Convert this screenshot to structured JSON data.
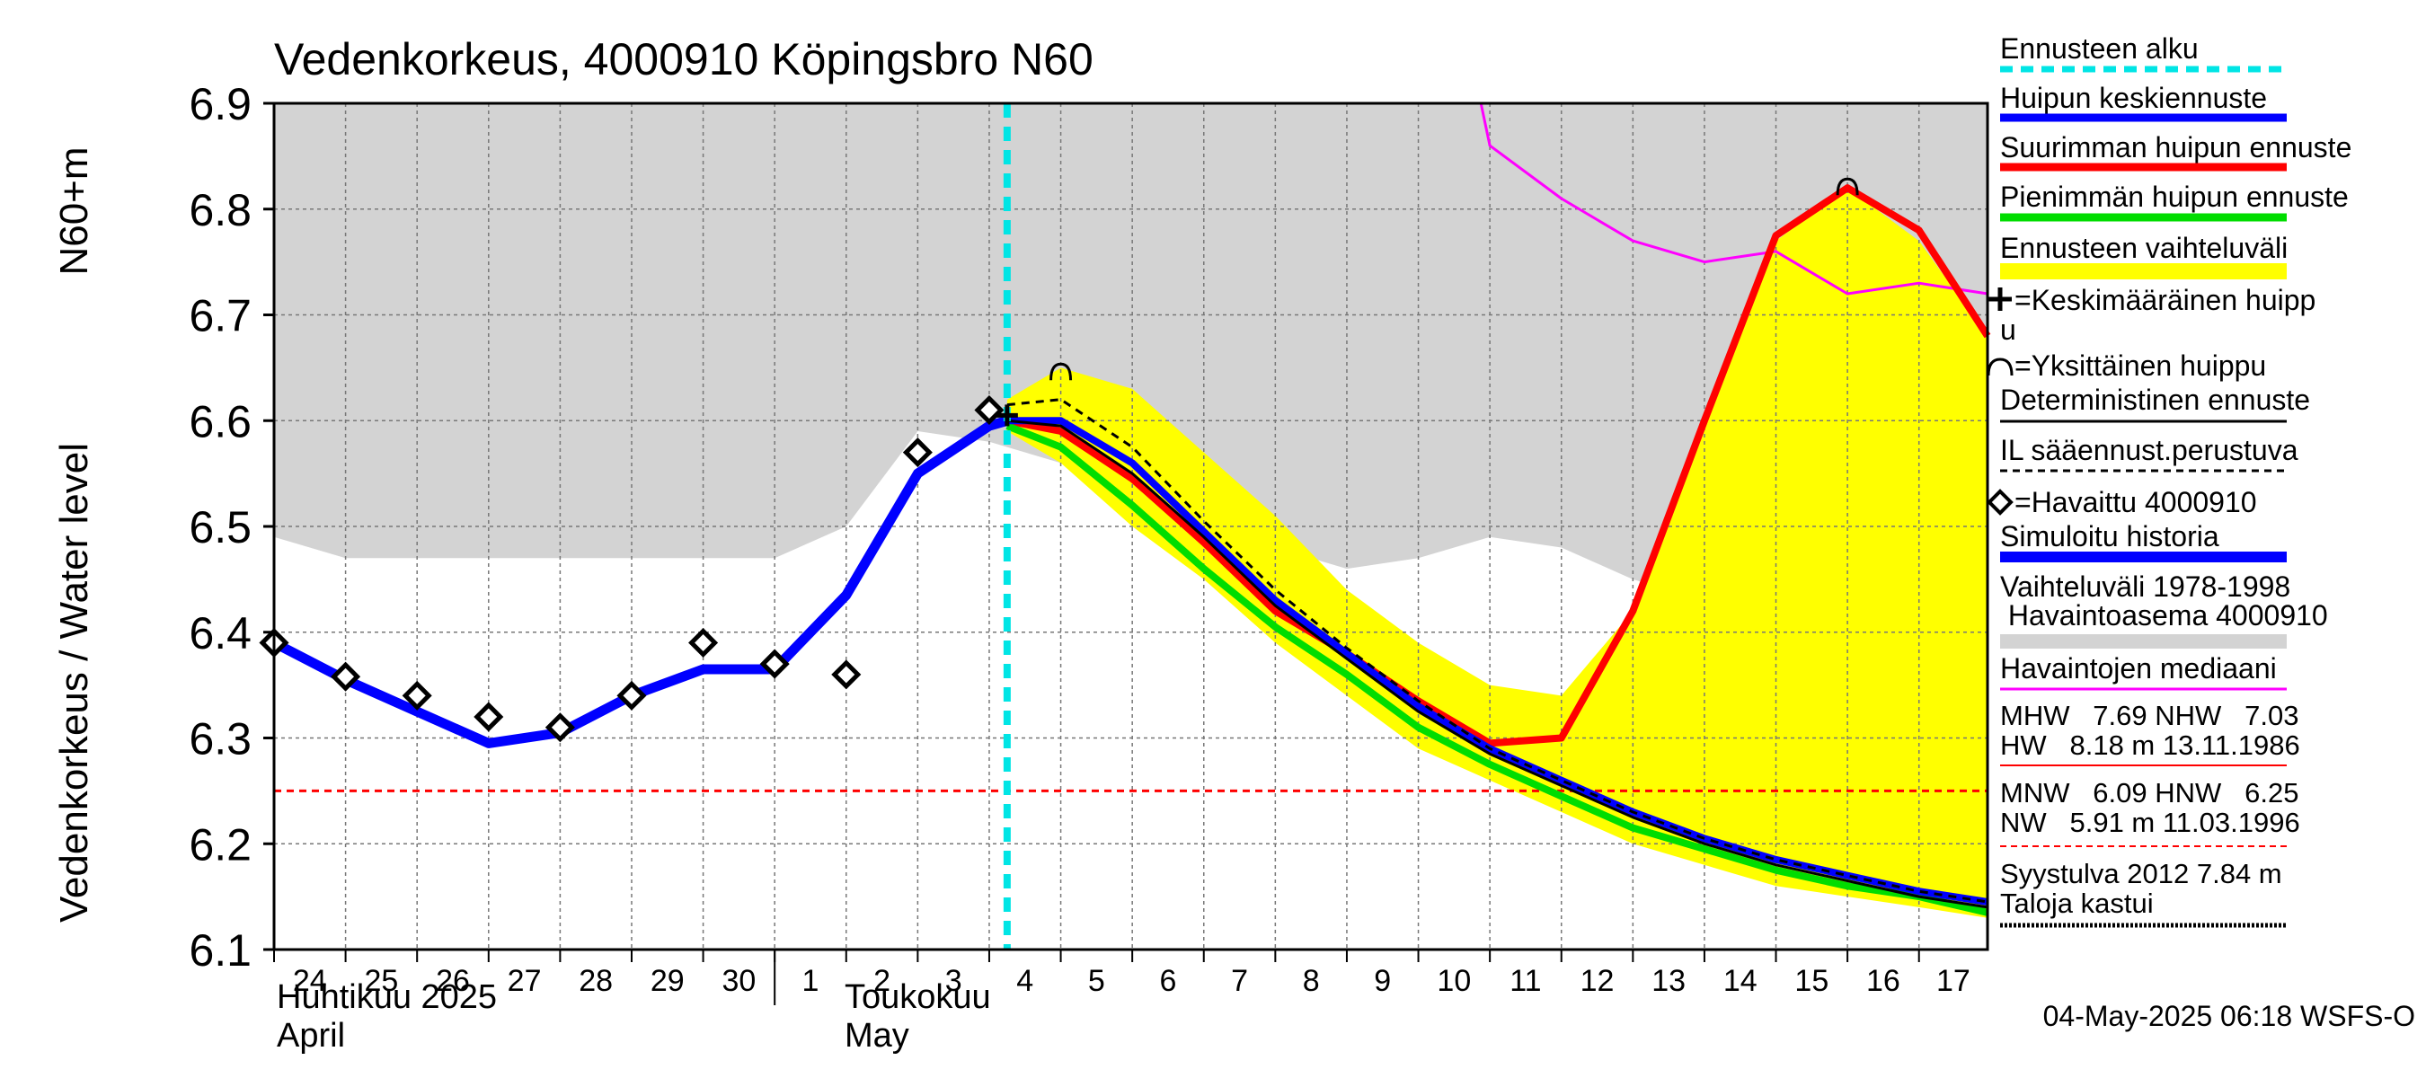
{
  "chart_data": {
    "type": "line",
    "title": "Vedenkorkeus, 4000910 Köpingsbro N60",
    "ylabel": "Vedenkorkeus / Water level",
    "yunit": "N60+m",
    "ylim": [
      6.1,
      6.9
    ],
    "yticks": [
      "6.1",
      "6.2",
      "6.3",
      "6.4",
      "6.5",
      "6.6",
      "6.7",
      "6.8",
      "6.9"
    ],
    "xlim": [
      "2025-04-24",
      "2025-05-17T23:00"
    ],
    "grid": true,
    "x_days": [
      {
        "date": "2025-04-24",
        "label": "24"
      },
      {
        "date": "2025-04-25",
        "label": "25"
      },
      {
        "date": "2025-04-26",
        "label": "26"
      },
      {
        "date": "2025-04-27",
        "label": "27"
      },
      {
        "date": "2025-04-28",
        "label": "28"
      },
      {
        "date": "2025-04-29",
        "label": "29"
      },
      {
        "date": "2025-04-30",
        "label": "30"
      },
      {
        "date": "2025-05-01",
        "label": "1"
      },
      {
        "date": "2025-05-02",
        "label": "2"
      },
      {
        "date": "2025-05-03",
        "label": "3"
      },
      {
        "date": "2025-05-04",
        "label": "4"
      },
      {
        "date": "2025-05-05",
        "label": "5"
      },
      {
        "date": "2025-05-06",
        "label": "6"
      },
      {
        "date": "2025-05-07",
        "label": "7"
      },
      {
        "date": "2025-05-08",
        "label": "8"
      },
      {
        "date": "2025-05-09",
        "label": "9"
      },
      {
        "date": "2025-05-10",
        "label": "10"
      },
      {
        "date": "2025-05-11",
        "label": "11"
      },
      {
        "date": "2025-05-12",
        "label": "12"
      },
      {
        "date": "2025-05-13",
        "label": "13"
      },
      {
        "date": "2025-05-14",
        "label": "14"
      },
      {
        "date": "2025-05-15",
        "label": "15"
      },
      {
        "date": "2025-05-16",
        "label": "16"
      },
      {
        "date": "2025-05-17",
        "label": "17"
      }
    ],
    "month_labels": {
      "april_fi": "Huhtikuu  2025",
      "april_en": "April",
      "may_fi": "Toukokuu",
      "may_en": "May"
    },
    "forecast_start": "2025-05-04T06:00",
    "hnw_level": 6.25,
    "series": [
      {
        "name": "Vaihteluväli 1978-1998 Havaintoasema 4000910",
        "kind": "band",
        "color": "#d3d3d3",
        "x": [
          "2025-04-24",
          "2025-04-25",
          "2025-04-26",
          "2025-04-27",
          "2025-04-28",
          "2025-04-29",
          "2025-04-30",
          "2025-05-01",
          "2025-05-02",
          "2025-05-03",
          "2025-05-04",
          "2025-05-05",
          "2025-05-06",
          "2025-05-07",
          "2025-05-08",
          "2025-05-09",
          "2025-05-10",
          "2025-05-11",
          "2025-05-12",
          "2025-05-13",
          "2025-05-14",
          "2025-05-15",
          "2025-05-16",
          "2025-05-17T23:00"
        ],
        "low": [
          6.49,
          6.47,
          6.47,
          6.47,
          6.47,
          6.47,
          6.47,
          6.47,
          6.5,
          6.59,
          6.58,
          6.56,
          6.52,
          6.5,
          6.48,
          6.46,
          6.47,
          6.49,
          6.48,
          6.45,
          6.43,
          6.4,
          6.39,
          6.38
        ],
        "high": [
          6.9,
          6.9,
          6.9,
          6.9,
          6.9,
          6.9,
          6.9,
          6.9,
          6.9,
          6.9,
          6.9,
          6.9,
          6.9,
          6.9,
          6.9,
          6.9,
          6.9,
          6.9,
          6.9,
          6.9,
          6.9,
          6.9,
          6.9,
          6.9
        ]
      },
      {
        "name": "Ennusteen vaihteluväli",
        "kind": "band",
        "color": "#ffff00",
        "x": [
          "2025-05-04T06:00",
          "2025-05-05",
          "2025-05-06",
          "2025-05-07",
          "2025-05-08",
          "2025-05-09",
          "2025-05-10",
          "2025-05-11",
          "2025-05-12",
          "2025-05-13",
          "2025-05-14",
          "2025-05-15",
          "2025-05-16",
          "2025-05-17",
          "2025-05-17T23:00"
        ],
        "low": [
          6.59,
          6.56,
          6.5,
          6.45,
          6.39,
          6.34,
          6.29,
          6.26,
          6.23,
          6.2,
          6.18,
          6.16,
          6.15,
          6.14,
          6.13
        ],
        "high": [
          6.62,
          6.65,
          6.63,
          6.57,
          6.51,
          6.44,
          6.39,
          6.35,
          6.34,
          6.42,
          6.6,
          6.77,
          6.82,
          6.77,
          6.68
        ]
      },
      {
        "name": "Havaintojen mediaani",
        "kind": "line",
        "color": "#ff00ff",
        "x": [
          "2025-05-10T21:00",
          "2025-05-11",
          "2025-05-12",
          "2025-05-13",
          "2025-05-14",
          "2025-05-15",
          "2025-05-16",
          "2025-05-17",
          "2025-05-17T23:00"
        ],
        "y": [
          6.9,
          6.86,
          6.81,
          6.77,
          6.75,
          6.76,
          6.72,
          6.73,
          6.72
        ]
      },
      {
        "name": "Simuloitu historia",
        "kind": "line",
        "color": "#0000ff",
        "width": 11,
        "x": [
          "2025-04-24",
          "2025-04-25",
          "2025-04-26",
          "2025-04-27",
          "2025-04-28",
          "2025-04-29",
          "2025-04-30",
          "2025-05-01",
          "2025-05-02",
          "2025-05-03",
          "2025-05-04",
          "2025-05-04T06:00"
        ],
        "y": [
          6.39,
          6.355,
          6.325,
          6.295,
          6.305,
          6.34,
          6.365,
          6.365,
          6.435,
          6.55,
          6.595,
          6.6
        ]
      },
      {
        "name": "Suurimman huipun ennuste",
        "kind": "line",
        "color": "#ff0000",
        "width": 8,
        "x": [
          "2025-05-04T06:00",
          "2025-05-05",
          "2025-05-06",
          "2025-05-07",
          "2025-05-08",
          "2025-05-09",
          "2025-05-10",
          "2025-05-11",
          "2025-05-12",
          "2025-05-13",
          "2025-05-14",
          "2025-05-15",
          "2025-05-16",
          "2025-05-17",
          "2025-05-17T23:00"
        ],
        "y": [
          6.6,
          6.59,
          6.545,
          6.485,
          6.42,
          6.38,
          6.335,
          6.295,
          6.3,
          6.42,
          6.6,
          6.775,
          6.82,
          6.78,
          6.68
        ]
      },
      {
        "name": "Pienimmän huipun ennuste",
        "kind": "line",
        "color": "#00dd00",
        "width": 8,
        "x": [
          "2025-05-04T06:00",
          "2025-05-05",
          "2025-05-06",
          "2025-05-07",
          "2025-05-08",
          "2025-05-09",
          "2025-05-10",
          "2025-05-11",
          "2025-05-12",
          "2025-05-13",
          "2025-05-14",
          "2025-05-15",
          "2025-05-16",
          "2025-05-17",
          "2025-05-17T23:00"
        ],
        "y": [
          6.595,
          6.575,
          6.52,
          6.46,
          6.405,
          6.36,
          6.31,
          6.275,
          6.245,
          6.215,
          6.195,
          6.175,
          6.16,
          6.15,
          6.135
        ]
      },
      {
        "name": "Huipun keskiennuste",
        "kind": "line",
        "color": "#0000ff",
        "width": 8,
        "x": [
          "2025-05-04T06:00",
          "2025-05-05",
          "2025-05-06",
          "2025-05-07",
          "2025-05-08",
          "2025-05-09",
          "2025-05-10",
          "2025-05-11",
          "2025-05-12",
          "2025-05-13",
          "2025-05-14",
          "2025-05-15",
          "2025-05-16",
          "2025-05-17",
          "2025-05-17T23:00"
        ],
        "y": [
          6.6,
          6.6,
          6.56,
          6.495,
          6.43,
          6.38,
          6.33,
          6.29,
          6.26,
          6.23,
          6.205,
          6.185,
          6.17,
          6.155,
          6.145
        ]
      },
      {
        "name": "Deterministinen ennuste",
        "kind": "line",
        "color": "#000000",
        "width": 3,
        "x": [
          "2025-05-04T06:00",
          "2025-05-05",
          "2025-05-06",
          "2025-05-07",
          "2025-05-08",
          "2025-05-09",
          "2025-05-10",
          "2025-05-11",
          "2025-05-12",
          "2025-05-13",
          "2025-05-14",
          "2025-05-15",
          "2025-05-16",
          "2025-05-17",
          "2025-05-17T23:00"
        ],
        "y": [
          6.6,
          6.595,
          6.55,
          6.49,
          6.425,
          6.375,
          6.325,
          6.285,
          6.255,
          6.225,
          6.2,
          6.18,
          6.165,
          6.15,
          6.14
        ]
      },
      {
        "name": "IL sääennust.perustuva",
        "kind": "line",
        "color": "#000000",
        "width": 3,
        "dash": "9,7",
        "x": [
          "2025-05-04T06:00",
          "2025-05-05",
          "2025-05-06",
          "2025-05-07",
          "2025-05-08",
          "2025-05-09",
          "2025-05-10",
          "2025-05-11",
          "2025-05-12",
          "2025-05-13",
          "2025-05-14",
          "2025-05-15",
          "2025-05-16",
          "2025-05-17",
          "2025-05-17T23:00"
        ],
        "y": [
          6.615,
          6.62,
          6.575,
          6.505,
          6.44,
          6.385,
          6.335,
          6.29,
          6.26,
          6.23,
          6.205,
          6.185,
          6.17,
          6.155,
          6.145
        ]
      }
    ],
    "observed": {
      "name": "Havaittu 4000910",
      "x": [
        "2025-04-24",
        "2025-04-25",
        "2025-04-26",
        "2025-04-27",
        "2025-04-28",
        "2025-04-29",
        "2025-04-30",
        "2025-05-01",
        "2025-05-02",
        "2025-05-03",
        "2025-05-04"
      ],
      "y": [
        6.39,
        6.358,
        6.34,
        6.32,
        6.31,
        6.34,
        6.39,
        6.37,
        6.36,
        6.57,
        6.61
      ]
    },
    "single_peaks": [
      {
        "x": "2025-05-05",
        "y": 6.645
      },
      {
        "x": "2025-05-16",
        "y": 6.82
      }
    ],
    "mean_peaks": [
      {
        "x": "2025-05-04T06:00",
        "y": 6.605
      }
    ],
    "legend": {
      "position": "right",
      "items": [
        {
          "label": "Ennusteen alku",
          "style": "dashed-cyan"
        },
        {
          "label": "Huipun keskiennuste",
          "style": "blue"
        },
        {
          "label": "Suurimman huipun ennuste",
          "style": "red"
        },
        {
          "label": "Pienimmän huipun ennuste",
          "style": "green"
        },
        {
          "label": "Ennusteen vaihteluväli",
          "style": "yellow"
        },
        {
          "label": "=Keskimääräinen huipp",
          "label2": "u",
          "style": "plus-symbol"
        },
        {
          "label": "=Yksittäinen huippu",
          "style": "arc-symbol"
        },
        {
          "label": "Deterministinen ennuste",
          "style": "black-thin"
        },
        {
          "label": "IL sääennust.perustuva",
          "style": "black-dashed"
        },
        {
          "label": "=Havaittu 4000910",
          "style": "diamond-symbol"
        },
        {
          "label": "Simuloitu historia",
          "style": "blue-thick"
        },
        {
          "label": "Vaihteluväli 1978-1998",
          "label2": " Havaintoasema 4000910",
          "style": "gray"
        },
        {
          "label": "Havaintojen mediaani",
          "style": "magenta"
        }
      ],
      "stats": {
        "mhw": "MHW   7.69 NHW   7.03",
        "hw": "HW   8.18 m 13.11.1986",
        "mnw": "MNW   6.09 HNW   6.25",
        "nw": "NW   5.91 m 11.03.1996",
        "syys": "Syystulva 2012 7.84 m",
        "taloja": "Taloja kastui"
      }
    },
    "timestamp": "04-May-2025 06:18 WSFS-O"
  }
}
